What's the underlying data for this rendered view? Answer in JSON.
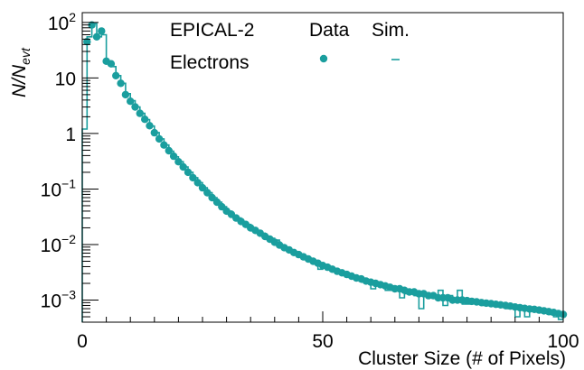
{
  "chart_data": {
    "type": "scatter",
    "x_axis": {
      "range": [
        0,
        100
      ],
      "major_ticks": [
        0,
        50,
        100
      ],
      "tick_labels": [
        "0",
        "50",
        "100"
      ],
      "label": "Cluster Size (# of Pixels)"
    },
    "y_axis": {
      "scale": "log",
      "range": [
        0.0004,
        150
      ],
      "major_ticks": [
        0.001,
        0.01,
        0.1,
        1,
        10,
        100
      ],
      "tick_labels": [
        {
          "base": "10",
          "exp": "−3"
        },
        {
          "base": "10",
          "exp": "−2"
        },
        {
          "base": "10",
          "exp": "−1"
        },
        {
          "base": "1",
          "exp": ""
        },
        {
          "base": "10",
          "exp": ""
        },
        {
          "base": "10",
          "exp": "2"
        }
      ],
      "label": {
        "main": "N/N",
        "sub": "evt"
      }
    },
    "legend": {
      "detector": "EPICAL-2",
      "particle": "Electrons",
      "data_header": "Data",
      "sim_header": "Sim.",
      "placement": "top-center"
    },
    "color": "#1a9e9e",
    "grid": false,
    "series": [
      {
        "name": "Data",
        "style": "markers",
        "x": [
          1,
          2,
          3,
          4,
          5,
          6,
          7,
          8,
          9,
          10,
          11,
          12,
          13,
          14,
          15,
          16,
          17,
          18,
          19,
          20,
          21,
          22,
          23,
          24,
          25,
          26,
          27,
          28,
          29,
          30,
          31,
          32,
          33,
          34,
          35,
          36,
          37,
          38,
          39,
          40,
          41,
          42,
          43,
          44,
          45,
          46,
          47,
          48,
          49,
          50,
          51,
          52,
          53,
          54,
          55,
          56,
          57,
          58,
          59,
          60,
          61,
          62,
          63,
          64,
          65,
          66,
          67,
          68,
          69,
          70,
          71,
          72,
          73,
          74,
          75,
          76,
          77,
          78,
          79,
          80,
          81,
          82,
          83,
          84,
          85,
          86,
          87,
          88,
          89,
          90,
          91,
          92,
          93,
          94,
          95,
          96,
          97,
          98,
          99,
          100
        ],
        "y": [
          45,
          90,
          55,
          70,
          20,
          18,
          11,
          8,
          5,
          3.8,
          3.0,
          2.3,
          1.8,
          1.38,
          1.03,
          0.8,
          0.62,
          0.49,
          0.39,
          0.31,
          0.25,
          0.2,
          0.16,
          0.13,
          0.105,
          0.086,
          0.07,
          0.058,
          0.048,
          0.04,
          0.035,
          0.03,
          0.026,
          0.023,
          0.02,
          0.018,
          0.016,
          0.014,
          0.0125,
          0.011,
          0.0098,
          0.0088,
          0.008,
          0.0072,
          0.0066,
          0.006,
          0.0055,
          0.005,
          0.0046,
          0.0042,
          0.0039,
          0.0036,
          0.0033,
          0.0031,
          0.0029,
          0.0027,
          0.0025,
          0.0024,
          0.0022,
          0.0021,
          0.002,
          0.0019,
          0.0018,
          0.0017,
          0.0016,
          0.0016,
          0.0015,
          0.0014,
          0.0014,
          0.0013,
          0.0013,
          0.0012,
          0.0012,
          0.0011,
          0.0011,
          0.0011,
          0.001,
          0.001,
          0.001,
          0.00098,
          0.00095,
          0.00093,
          0.0009,
          0.00088,
          0.00086,
          0.00084,
          0.00082,
          0.0008,
          0.00078,
          0.00075,
          0.00073,
          0.00071,
          0.00069,
          0.00068,
          0.00066,
          0.00064,
          0.00062,
          0.0006,
          0.00057,
          0.00055
        ]
      },
      {
        "name": "Sim.",
        "style": "step",
        "x": [
          0,
          1,
          2,
          3,
          4,
          5,
          6,
          7,
          8,
          9,
          10,
          11,
          12,
          13,
          14,
          15,
          16,
          17,
          18,
          19,
          20,
          21,
          22,
          23,
          24,
          25,
          26,
          27,
          28,
          29,
          30,
          31,
          32,
          33,
          34,
          35,
          36,
          37,
          38,
          39,
          40,
          41,
          42,
          43,
          44,
          45,
          46,
          47,
          48,
          49,
          50,
          51,
          52,
          53,
          54,
          55,
          56,
          57,
          58,
          59,
          60,
          61,
          62,
          63,
          64,
          65,
          66,
          67,
          68,
          69,
          70,
          71,
          72,
          73,
          74,
          75,
          76,
          77,
          78,
          79,
          80,
          81,
          82,
          83,
          84,
          85,
          86,
          87,
          88,
          89,
          90,
          91,
          92,
          93,
          94,
          95,
          96,
          97,
          98,
          99
        ],
        "y": [
          1.2,
          55,
          95,
          55,
          60,
          19,
          16,
          11,
          8,
          5.2,
          3.9,
          3.0,
          2.3,
          1.78,
          1.36,
          1.04,
          0.8,
          0.62,
          0.48,
          0.38,
          0.31,
          0.25,
          0.2,
          0.16,
          0.13,
          0.105,
          0.086,
          0.07,
          0.058,
          0.048,
          0.04,
          0.034,
          0.03,
          0.026,
          0.023,
          0.02,
          0.018,
          0.016,
          0.014,
          0.013,
          0.012,
          0.0092,
          0.0085,
          0.0076,
          0.0067,
          0.0063,
          0.0055,
          0.0052,
          0.0047,
          0.0036,
          0.0043,
          0.0035,
          0.0035,
          0.0031,
          0.0028,
          0.0028,
          0.0025,
          0.0024,
          0.0021,
          0.0022,
          0.0016,
          0.0019,
          0.0019,
          0.0015,
          0.0015,
          0.0017,
          0.0011,
          0.0013,
          0.0015,
          0.0012,
          0.0007,
          0.0013,
          0.0013,
          0.0011,
          0.0015,
          0.0008,
          0.0012,
          0.00095,
          0.0015,
          0.00085,
          0.00085,
          0.00095,
          0.0009,
          0.0008,
          0.00085,
          0.0008,
          0.00075,
          0.00075,
          0.0007,
          0.0007,
          0.0005,
          0.00072,
          0.0005,
          0.0007,
          0.00065,
          0.0006,
          0.00058,
          0.00055,
          0.0005,
          0.00045
        ]
      }
    ]
  }
}
